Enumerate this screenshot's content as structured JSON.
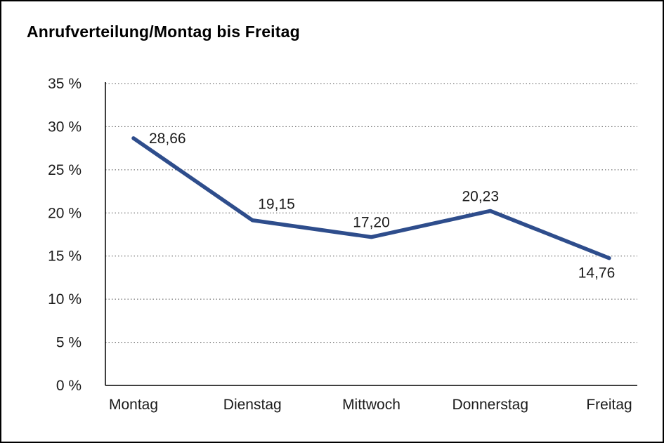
{
  "title": "Anrufverteilung/Montag bis Freitag",
  "chart_data": {
    "type": "line",
    "title": "Anrufverteilung/Montag bis Freitag",
    "categories": [
      "Montag",
      "Dienstag",
      "Mittwoch",
      "Donnerstag",
      "Freitag"
    ],
    "values": [
      28.66,
      19.15,
      17.2,
      20.23,
      14.76
    ],
    "data_labels": [
      "28,66",
      "19,15",
      "17,20",
      "20,23",
      "14,76"
    ],
    "xlabel": "",
    "ylabel": "",
    "ylim": [
      0,
      35
    ],
    "ytick_step": 5,
    "ytick_suffix": " %",
    "ytick_labels": [
      "0 %",
      "5 %",
      "10 %",
      "15 %",
      "20 %",
      "25 %",
      "30 %",
      "35 %"
    ],
    "grid": "horizontal-dotted",
    "legend": "none"
  },
  "colors": {
    "line": "#2e4d8c",
    "axis": "#000000",
    "grid": "#555555",
    "text": "#1a1a1a",
    "background": "#ffffff",
    "border": "#000000"
  }
}
